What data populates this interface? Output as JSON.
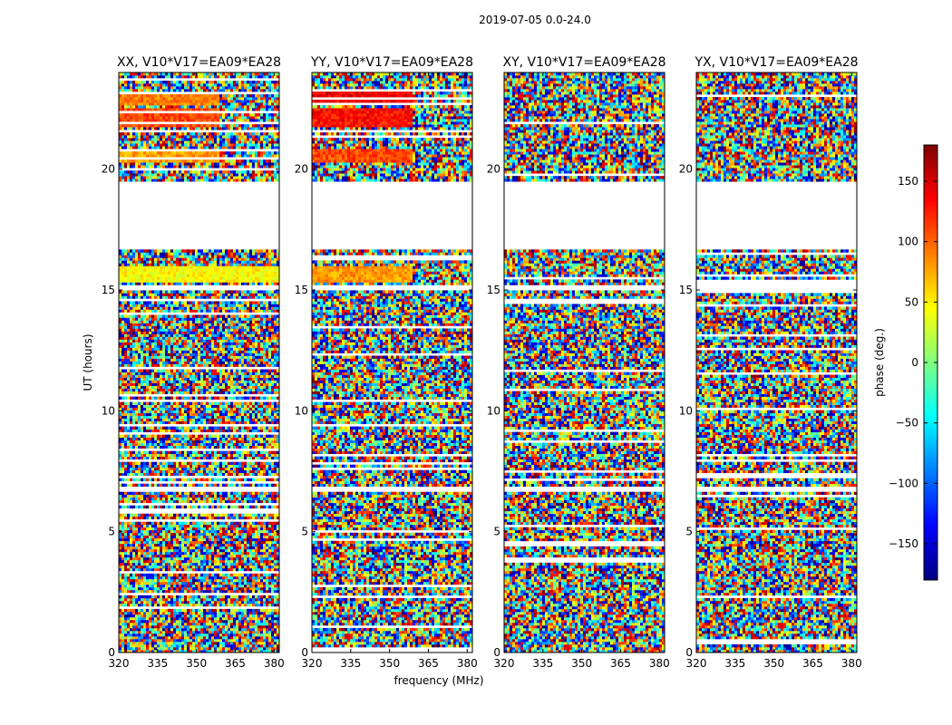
{
  "figure": {
    "suptitle": "2019-07-05 0.0-24.0",
    "xlabel": "frequency (MHz)",
    "ylabel": "UT (hours)"
  },
  "colorbar": {
    "label": "phase (deg.)",
    "range": [
      -180,
      180
    ],
    "ticks": [
      "150",
      "100",
      "50",
      "0",
      "−50",
      "−100",
      "−150"
    ],
    "tick_values": [
      150,
      100,
      50,
      0,
      -50,
      -100,
      -150
    ],
    "colormap": "jet",
    "colors": [
      "#00007f",
      "#0000ff",
      "#007fff",
      "#00ffff",
      "#7fff7f",
      "#ffff00",
      "#ff7f00",
      "#ff0000",
      "#7f0000"
    ]
  },
  "chart_data": [
    {
      "type": "heatmap",
      "title": "XX, V10*V17=EA09*EA28",
      "xlabel": "frequency (MHz)",
      "ylabel": "UT (hours)",
      "xlim": [
        320,
        382
      ],
      "ylim": [
        0,
        24
      ],
      "xticks": [
        "320",
        "335",
        "350",
        "365",
        "380"
      ],
      "xtick_values": [
        320,
        335,
        350,
        365,
        380
      ],
      "yticks": [
        "0",
        "5",
        "10",
        "15",
        "20"
      ],
      "ytick_values": [
        0,
        5,
        10,
        15,
        20
      ],
      "value": "phase (deg.)",
      "blank_hours": [
        [
          16.7,
          19.5
        ],
        [
          15.0,
          15.2
        ],
        [
          6.7,
          6.85
        ],
        [
          1.3,
          1.4
        ]
      ],
      "coherent_bands": [
        {
          "hours": [
            22.6,
            23.2
          ],
          "freq": [
            320,
            359
          ],
          "phase": 90
        },
        {
          "hours": [
            21.8,
            22.5
          ],
          "freq": [
            320,
            359
          ],
          "phase": 110
        },
        {
          "hours": [
            20.3,
            20.8
          ],
          "freq": [
            320,
            359
          ],
          "phase": 80
        },
        {
          "hours": [
            15.3,
            16.0
          ],
          "freq": [
            320,
            382
          ],
          "phase": 45
        }
      ]
    },
    {
      "type": "heatmap",
      "title": "YY, V10*V17=EA09*EA28",
      "xlabel": "frequency (MHz)",
      "ylabel": "UT (hours)",
      "xlim": [
        320,
        382
      ],
      "ylim": [
        0,
        24
      ],
      "xticks": [
        "320",
        "335",
        "350",
        "365",
        "380"
      ],
      "xtick_values": [
        320,
        335,
        350,
        365,
        380
      ],
      "yticks": [
        "0",
        "5",
        "10",
        "15",
        "20"
      ],
      "ytick_values": [
        0,
        5,
        10,
        15,
        20
      ],
      "value": "phase (deg.)",
      "blank_hours": [
        [
          16.7,
          19.5
        ],
        [
          15.0,
          15.2
        ],
        [
          6.7,
          6.85
        ],
        [
          1.3,
          1.4
        ]
      ],
      "coherent_bands": [
        {
          "hours": [
            22.6,
            23.2
          ],
          "freq": [
            320,
            359
          ],
          "phase": 140
        },
        {
          "hours": [
            21.8,
            22.5
          ],
          "freq": [
            320,
            359
          ],
          "phase": 130
        },
        {
          "hours": [
            20.3,
            20.8
          ],
          "freq": [
            320,
            359
          ],
          "phase": 110
        },
        {
          "hours": [
            15.3,
            16.0
          ],
          "freq": [
            320,
            359
          ],
          "phase": 80
        }
      ]
    },
    {
      "type": "heatmap",
      "title": "XY, V10*V17=EA09*EA28",
      "xlabel": "frequency (MHz)",
      "ylabel": "UT (hours)",
      "xlim": [
        320,
        382
      ],
      "ylim": [
        0,
        24
      ],
      "xticks": [
        "320",
        "335",
        "350",
        "365",
        "380"
      ],
      "xtick_values": [
        320,
        335,
        350,
        365,
        380
      ],
      "yticks": [
        "0",
        "5",
        "10",
        "15",
        "20"
      ],
      "ytick_values": [
        0,
        5,
        10,
        15,
        20
      ],
      "value": "phase (deg.)",
      "blank_hours": [
        [
          16.7,
          19.5
        ],
        [
          15.0,
          15.2
        ],
        [
          6.7,
          6.85
        ],
        [
          1.3,
          1.4
        ]
      ],
      "coherent_bands": []
    },
    {
      "type": "heatmap",
      "title": "YX, V10*V17=EA09*EA28",
      "xlabel": "frequency (MHz)",
      "ylabel": "UT (hours)",
      "xlim": [
        320,
        382
      ],
      "ylim": [
        0,
        24
      ],
      "xticks": [
        "320",
        "335",
        "350",
        "365",
        "380"
      ],
      "xtick_values": [
        320,
        335,
        350,
        365,
        380
      ],
      "yticks": [
        "0",
        "5",
        "10",
        "15",
        "20"
      ],
      "ytick_values": [
        0,
        5,
        10,
        15,
        20
      ],
      "value": "phase (deg.)",
      "blank_hours": [
        [
          16.7,
          19.5
        ],
        [
          15.0,
          15.2
        ],
        [
          6.7,
          6.85
        ],
        [
          1.3,
          1.4
        ]
      ],
      "coherent_bands": []
    }
  ]
}
